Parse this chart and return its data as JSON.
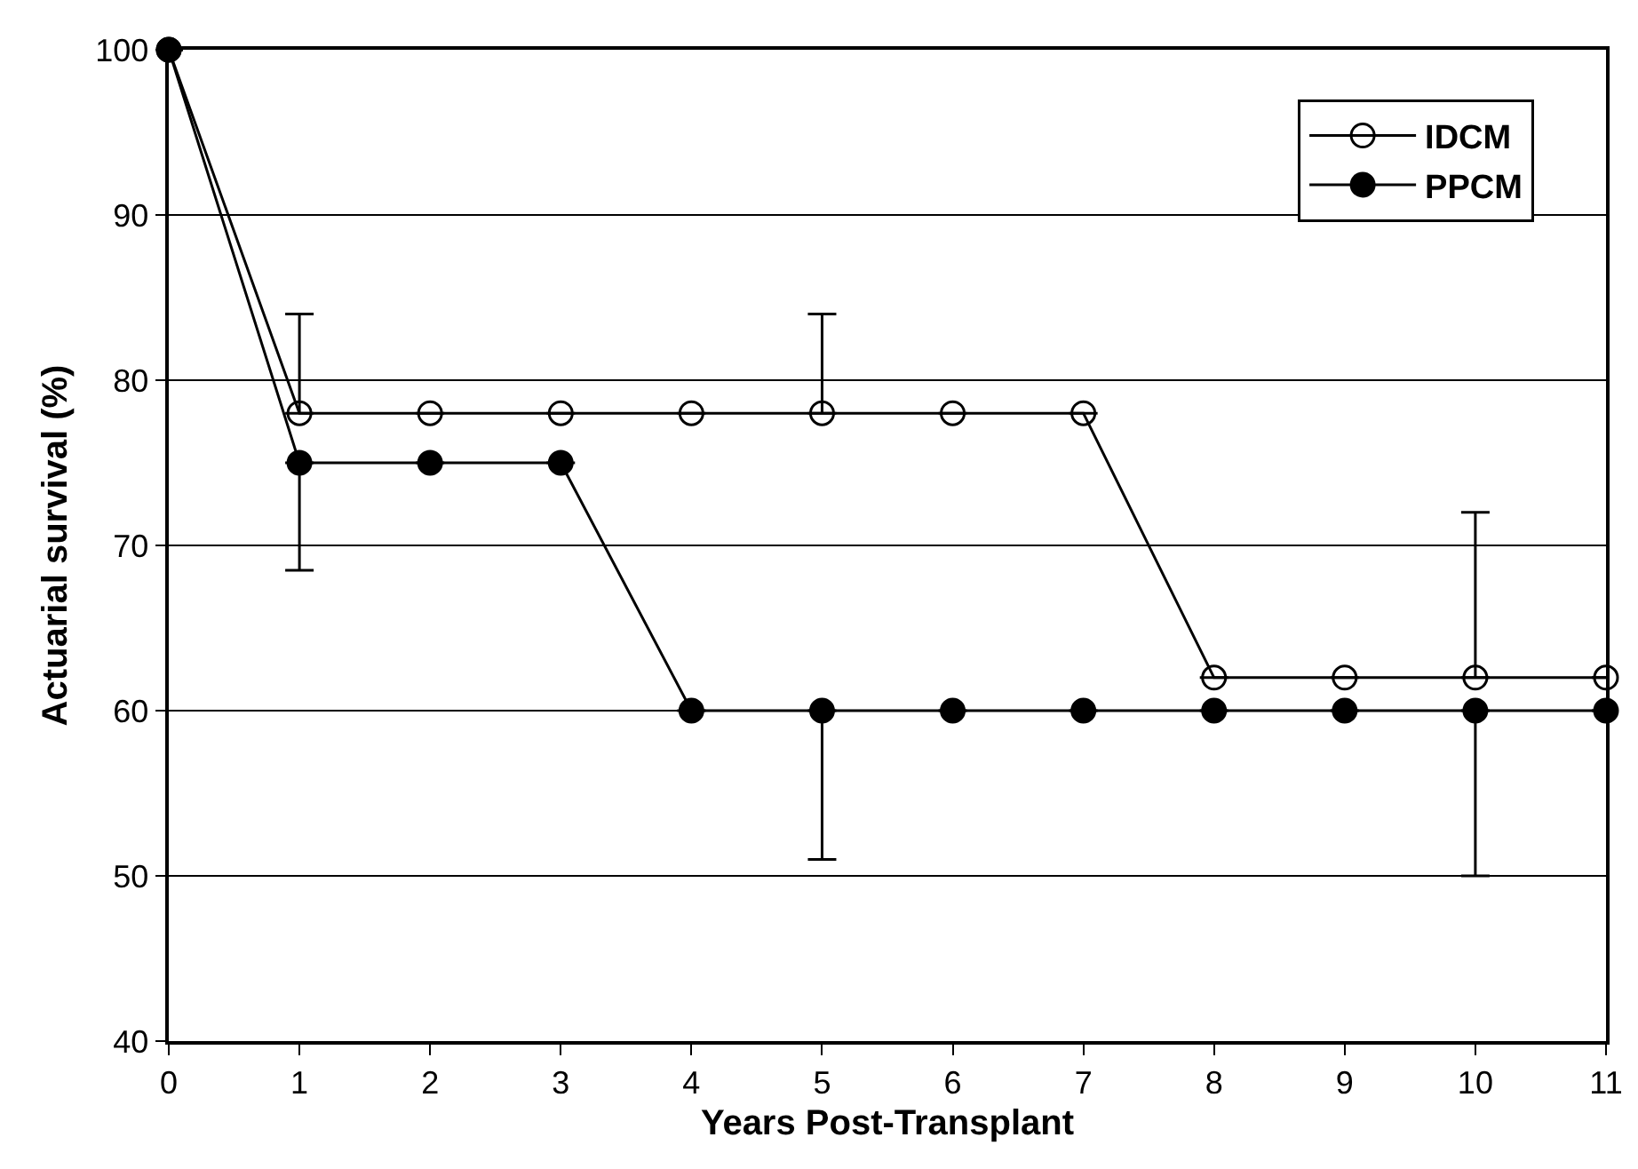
{
  "chart_data": {
    "type": "line",
    "xlabel": "Years Post-Transplant",
    "ylabel": "Actuarial survival (%)",
    "x": [
      0,
      1,
      2,
      3,
      4,
      5,
      6,
      7,
      8,
      9,
      10,
      11
    ],
    "series": [
      {
        "name": "IDCM",
        "color": "#000000",
        "marker": "circle-open",
        "values": [
          100,
          78,
          78,
          78,
          78,
          78,
          78,
          78,
          62,
          62,
          62,
          62
        ],
        "errors": [
          null,
          [
            78,
            84
          ],
          null,
          null,
          null,
          [
            78,
            84
          ],
          null,
          null,
          null,
          null,
          [
            62,
            72
          ],
          null
        ]
      },
      {
        "name": "PPCM",
        "color": "#000000",
        "marker": "circle",
        "values": [
          100,
          75,
          75,
          75,
          60,
          60,
          60,
          60,
          60,
          60,
          60,
          60
        ],
        "errors": [
          null,
          [
            68.5,
            75
          ],
          null,
          null,
          null,
          [
            51,
            60
          ],
          null,
          null,
          null,
          null,
          [
            50,
            60
          ],
          null
        ]
      }
    ],
    "xlim": [
      0,
      11
    ],
    "xticks": [
      0,
      1,
      2,
      3,
      4,
      5,
      6,
      7,
      8,
      9,
      10,
      11
    ],
    "ylim": [
      40,
      100
    ],
    "yticks": [
      40,
      50,
      60,
      70,
      80,
      90,
      100
    ],
    "grid": "y",
    "legend": "top right",
    "line_style": "solid"
  }
}
